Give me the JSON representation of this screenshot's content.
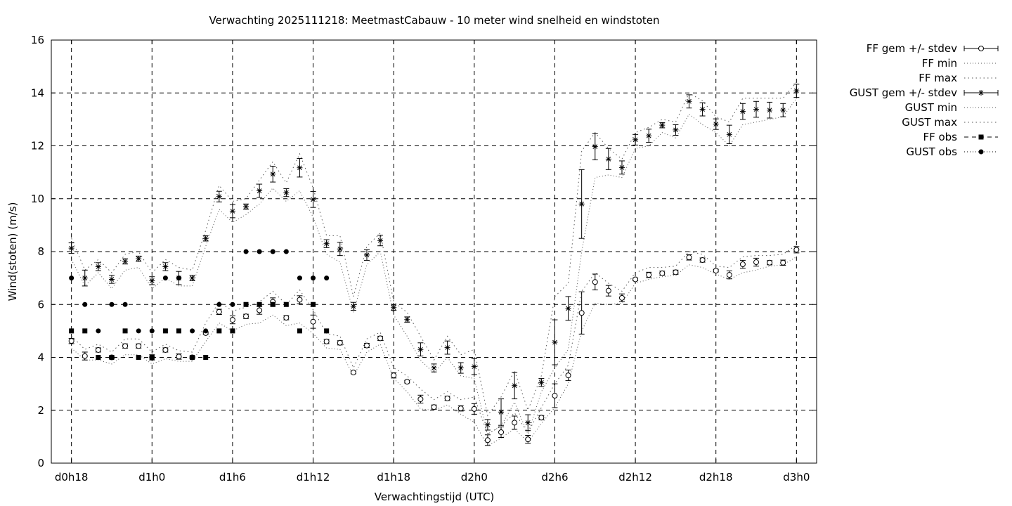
{
  "chart_data": {
    "type": "line",
    "title": "Verwachting 2025111218: MeetmastCabauw - 10 meter wind snelheid en windstoten",
    "xlabel": "Verwachtingstijd (UTC)",
    "ylabel": "Wind(stoten) (m/s)",
    "ylim": [
      0,
      16
    ],
    "yticks": [
      0,
      2,
      4,
      6,
      8,
      10,
      12,
      14,
      16
    ],
    "xlim": [
      -1.5,
      55.5
    ],
    "xticks": [
      {
        "x": 0,
        "label": "d0h18"
      },
      {
        "x": 6,
        "label": "d1h0"
      },
      {
        "x": 12,
        "label": "d1h6"
      },
      {
        "x": 18,
        "label": "d1h12"
      },
      {
        "x": 24,
        "label": "d1h18"
      },
      {
        "x": 30,
        "label": "d2h0"
      },
      {
        "x": 36,
        "label": "d2h6"
      },
      {
        "x": 42,
        "label": "d2h12"
      },
      {
        "x": 48,
        "label": "d2h18"
      },
      {
        "x": 54,
        "label": "d3h0"
      }
    ],
    "grid": true,
    "legend_position": "outside-right",
    "legend": [
      {
        "key": "ff_mean",
        "label": "FF gem +/- stdev"
      },
      {
        "key": "ff_min",
        "label": "FF min"
      },
      {
        "key": "ff_max",
        "label": "FF max"
      },
      {
        "key": "gust_mean",
        "label": "GUST gem +/- stdev"
      },
      {
        "key": "gust_min",
        "label": "GUST min"
      },
      {
        "key": "gust_max",
        "label": "GUST max"
      },
      {
        "key": "ff_obs",
        "label": "FF obs"
      },
      {
        "key": "gust_obs",
        "label": "GUST obs"
      }
    ],
    "x": [
      0,
      1,
      2,
      3,
      4,
      5,
      6,
      7,
      8,
      9,
      10,
      11,
      12,
      13,
      14,
      15,
      16,
      17,
      18,
      19,
      20,
      21,
      22,
      23,
      24,
      25,
      26,
      27,
      28,
      29,
      30,
      31,
      32,
      33,
      34,
      35,
      36,
      37,
      38,
      39,
      40,
      41,
      42,
      43,
      44,
      45,
      46,
      47,
      48,
      49,
      50,
      51,
      52,
      53,
      54
    ],
    "series": {
      "ff_mean": [
        4.62,
        4.05,
        4.28,
        4.0,
        4.43,
        4.43,
        4.0,
        4.28,
        4.03,
        4.0,
        4.92,
        5.72,
        5.42,
        5.55,
        5.78,
        6.1,
        5.5,
        6.18,
        5.35,
        4.6,
        4.55,
        3.43,
        4.45,
        4.72,
        3.32,
        3.08,
        2.42,
        2.12,
        2.45,
        2.07,
        2.05,
        0.87,
        1.17,
        1.53,
        0.9,
        1.72,
        2.55,
        3.32,
        5.68,
        6.85,
        6.52,
        6.25,
        6.95,
        7.12,
        7.18,
        7.22,
        7.78,
        7.68,
        7.28,
        7.12,
        7.52,
        7.6,
        7.58,
        7.58,
        8.07
      ],
      "ff_std": [
        0.1,
        0.15,
        0.08,
        0.05,
        0.08,
        0.08,
        0.1,
        0.08,
        0.1,
        0.05,
        0.05,
        0.1,
        0.15,
        0.08,
        0.15,
        0.15,
        0.08,
        0.15,
        0.25,
        0.08,
        0.08,
        0.05,
        0.08,
        0.08,
        0.1,
        0.05,
        0.15,
        0.08,
        0.08,
        0.1,
        0.2,
        0.2,
        0.2,
        0.25,
        0.15,
        0.08,
        0.45,
        0.2,
        0.8,
        0.3,
        0.2,
        0.15,
        0.05,
        0.1,
        0.08,
        0.08,
        0.1,
        0.08,
        0.05,
        0.15,
        0.15,
        0.15,
        0.08,
        0.1,
        0.12
      ],
      "ff_min": [
        4.35,
        3.9,
        3.9,
        3.75,
        4.1,
        4.1,
        3.75,
        3.95,
        3.85,
        3.85,
        4.6,
        5.3,
        5.0,
        5.25,
        5.3,
        5.6,
        5.2,
        5.3,
        4.9,
        4.35,
        4.3,
        3.3,
        4.2,
        4.5,
        3.2,
        2.7,
        2.05,
        2.0,
        2.2,
        1.85,
        1.55,
        0.65,
        0.95,
        1.3,
        0.8,
        1.5,
        2.1,
        3.0,
        5.0,
        6.05,
        6.0,
        6.05,
        6.8,
        6.95,
        7.05,
        7.1,
        7.5,
        7.4,
        7.15,
        6.95,
        7.2,
        7.3,
        7.45,
        7.5,
        7.8
      ],
      "ff_max": [
        4.8,
        4.3,
        4.5,
        4.2,
        4.7,
        4.7,
        4.2,
        4.5,
        4.25,
        4.2,
        5.3,
        6.1,
        5.75,
        5.9,
        6.1,
        6.5,
        6.0,
        6.55,
        5.8,
        4.9,
        4.8,
        3.6,
        4.7,
        4.95,
        3.6,
        3.3,
        2.8,
        2.4,
        2.7,
        2.4,
        2.5,
        1.1,
        1.4,
        1.9,
        1.15,
        2.1,
        3.0,
        3.7,
        6.5,
        7.2,
        6.8,
        6.5,
        7.2,
        7.4,
        7.4,
        7.45,
        8.0,
        7.9,
        7.45,
        7.4,
        7.8,
        7.85,
        7.85,
        7.9,
        8.25
      ],
      "gust_mean": [
        8.13,
        7.0,
        7.43,
        6.95,
        7.63,
        7.73,
        6.9,
        7.43,
        7.0,
        7.0,
        8.5,
        10.08,
        9.53,
        9.7,
        10.3,
        10.93,
        10.23,
        11.17,
        9.97,
        8.3,
        8.1,
        5.93,
        7.87,
        8.42,
        5.88,
        5.43,
        4.3,
        3.6,
        4.37,
        3.6,
        3.65,
        1.45,
        1.93,
        2.93,
        1.53,
        3.05,
        4.57,
        5.85,
        9.8,
        11.97,
        11.5,
        11.18,
        12.23,
        12.38,
        12.78,
        12.6,
        13.68,
        13.38,
        12.82,
        12.43,
        13.3,
        13.38,
        13.35,
        13.35,
        14.08
      ],
      "gust_std": [
        0.2,
        0.3,
        0.15,
        0.15,
        0.1,
        0.1,
        0.15,
        0.15,
        0.25,
        0.1,
        0.1,
        0.2,
        0.25,
        0.1,
        0.25,
        0.3,
        0.15,
        0.35,
        0.3,
        0.15,
        0.25,
        0.15,
        0.2,
        0.2,
        0.1,
        0.1,
        0.25,
        0.15,
        0.25,
        0.2,
        0.3,
        0.2,
        0.5,
        0.5,
        0.3,
        0.15,
        0.85,
        0.45,
        1.3,
        0.5,
        0.4,
        0.25,
        0.2,
        0.25,
        0.1,
        0.2,
        0.25,
        0.25,
        0.2,
        0.35,
        0.3,
        0.3,
        0.3,
        0.25,
        0.25
      ],
      "gust_min": [
        7.7,
        6.7,
        7.2,
        6.6,
        7.3,
        7.4,
        6.6,
        7.0,
        6.7,
        6.7,
        8.2,
        9.6,
        9.1,
        9.4,
        9.8,
        10.4,
        9.9,
        10.3,
        9.3,
        7.9,
        7.6,
        5.7,
        7.5,
        8.0,
        5.6,
        4.8,
        3.9,
        3.4,
        4.0,
        3.3,
        3.2,
        1.1,
        1.4,
        2.3,
        1.1,
        2.7,
        3.6,
        4.3,
        8.0,
        10.8,
        10.9,
        10.8,
        11.9,
        12.0,
        12.5,
        12.3,
        13.2,
        12.8,
        12.5,
        12.0,
        12.8,
        12.9,
        13.0,
        13.1,
        13.8
      ],
      "gust_max": [
        8.5,
        7.3,
        7.7,
        7.2,
        7.9,
        8.0,
        7.2,
        7.7,
        7.4,
        7.3,
        8.8,
        10.5,
        9.9,
        10.0,
        10.7,
        11.4,
        10.6,
        11.7,
        10.4,
        8.6,
        8.6,
        6.3,
        8.2,
        8.7,
        6.1,
        5.7,
        4.8,
        3.9,
        4.8,
        4.1,
        4.3,
        1.8,
        2.5,
        3.5,
        2.0,
        3.3,
        6.3,
        6.8,
        11.8,
        12.5,
        11.9,
        11.5,
        12.5,
        12.7,
        13.0,
        12.9,
        14.0,
        13.7,
        13.1,
        12.9,
        13.8,
        13.8,
        13.8,
        13.8,
        14.4
      ]
    },
    "ff_obs": {
      "x": [
        0,
        1,
        2,
        3,
        4,
        5,
        6,
        7,
        8,
        9,
        10,
        11,
        12,
        13,
        14,
        15,
        16,
        17,
        18,
        19
      ],
      "y": [
        5,
        5,
        4,
        4,
        5,
        4,
        4,
        5,
        5,
        4,
        4,
        5,
        5,
        6,
        6,
        6,
        6,
        5,
        6,
        5
      ]
    },
    "gust_obs": {
      "x": [
        0,
        1,
        2,
        3,
        4,
        5,
        6,
        7,
        8,
        9,
        10,
        11,
        12,
        13,
        14,
        15,
        16,
        17,
        18,
        19
      ],
      "y": [
        7,
        6,
        5,
        6,
        6,
        5,
        5,
        7,
        7,
        5,
        5,
        6,
        6,
        8,
        8,
        8,
        8,
        7,
        7,
        7
      ]
    }
  }
}
